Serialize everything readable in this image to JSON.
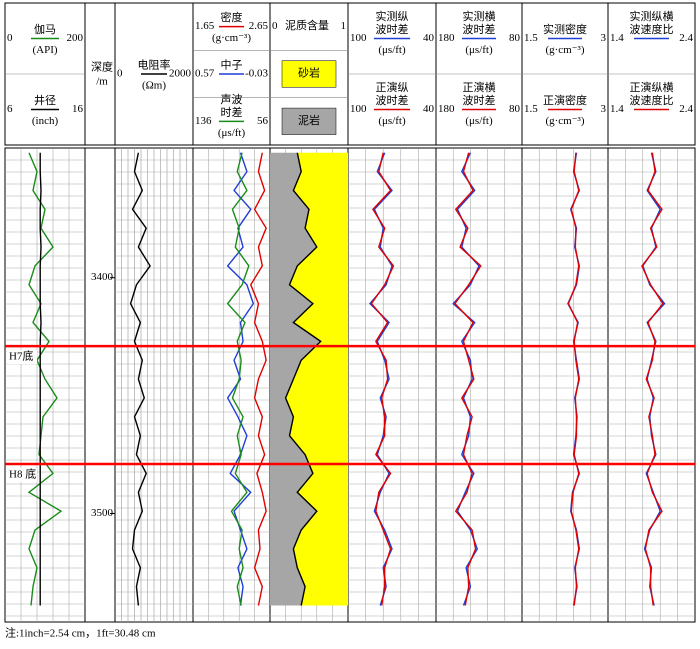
{
  "chart_data": {
    "type": "well-log",
    "note": "注:1inch=2.54 cm，1ft=30.48 cm",
    "depth_title": [
      "深度",
      "/m"
    ],
    "ylim": [
      3345,
      3546
    ],
    "yticks": [
      3400,
      3500
    ],
    "depths": [
      3347,
      3355,
      3363,
      3371,
      3379,
      3387,
      3395,
      3403,
      3411,
      3419,
      3427,
      3435,
      3443,
      3451,
      3459,
      3467,
      3475,
      3483,
      3491,
      3499,
      3507,
      3515,
      3523,
      3531,
      3539
    ],
    "markers": [
      {
        "label": "H7底",
        "depth": 3429
      },
      {
        "label": "H8 底",
        "depth": 3479
      }
    ],
    "lithology": [
      {
        "label": "砂岩",
        "color": "#ffff00"
      },
      {
        "label": "泥岩",
        "color": "#a6a6a6"
      }
    ],
    "tracks": [
      {
        "curves": [
          {
            "name": [
              "伽马"
            ],
            "unit": "(API)",
            "scale": [
              0,
              200
            ],
            "color": "#1a8c1a",
            "values": [
              60,
              80,
              70,
              100,
              90,
              120,
              75,
              60,
              90,
              70,
              110,
              80,
              100,
              130,
              95,
              90,
              85,
              120,
              60,
              140,
              75,
              60,
              80,
              70,
              65
            ]
          },
          {
            "name": [
              "井径"
            ],
            "unit": "(inch)",
            "scale": [
              6,
              16
            ],
            "color": "#000000",
            "values": [
              10.4,
              10.4,
              10.5,
              10.4,
              10.4,
              10.5,
              10.4,
              10.4,
              10.4,
              10.5,
              10.4,
              10.4,
              10.4,
              10.4,
              10.4,
              10.4,
              10.4,
              10.4,
              10.4,
              10.4,
              10.4,
              10.4,
              10.4,
              10.4,
              10.4
            ]
          }
        ]
      },
      {
        "curves": [
          {
            "name": [
              "电阻率"
            ],
            "unit": "(Ωm)",
            "scale": [
              0,
              2000
            ],
            "color": "#000000",
            "values": [
              600,
              500,
              700,
              450,
              800,
              600,
              900,
              550,
              400,
              650,
              500,
              700,
              600,
              750,
              500,
              650,
              550,
              800,
              600,
              700,
              500,
              450,
              650,
              550,
              600
            ]
          }
        ]
      },
      {
        "curves": [
          {
            "name": [
              "密度"
            ],
            "unit": "(g·cm⁻³)",
            "scale": [
              1.65,
              2.65
            ],
            "color": "#e00000",
            "values": [
              2.55,
              2.5,
              2.58,
              2.45,
              2.6,
              2.5,
              2.55,
              2.4,
              2.5,
              2.45,
              2.55,
              2.6,
              2.5,
              2.45,
              2.55,
              2.5,
              2.58,
              2.48,
              2.55,
              2.6,
              2.5,
              2.52,
              2.45,
              2.55,
              2.5
            ]
          },
          {
            "name": [
              "中子"
            ],
            "unit": "",
            "scale": [
              0.57,
              -0.03
            ],
            "color": "#1f3fd6",
            "values": [
              0.2,
              0.15,
              0.25,
              0.12,
              0.22,
              0.18,
              0.3,
              0.15,
              0.1,
              0.2,
              0.18,
              0.25,
              0.2,
              0.3,
              0.22,
              0.15,
              0.2,
              0.28,
              0.12,
              0.25,
              0.2,
              0.15,
              0.22,
              0.18,
              0.2
            ]
          },
          {
            "name": [
              "声波",
              "时差"
            ],
            "unit": "(μs/ft)",
            "scale": [
              136,
              56
            ],
            "color": "#1a8c1a",
            "values": [
              85,
              90,
              80,
              95,
              88,
              92,
              78,
              85,
              100,
              82,
              90,
              86,
              88,
              95,
              84,
              90,
              86,
              92,
              80,
              96,
              85,
              88,
              84,
              90,
              86
            ]
          }
        ]
      },
      {
        "shale": true,
        "curves": [
          {
            "name": [
              "泥质含量"
            ],
            "unit": "",
            "scale": [
              0,
              1
            ],
            "color": "#000000",
            "values": [
              0.35,
              0.4,
              0.3,
              0.5,
              0.45,
              0.6,
              0.35,
              0.25,
              0.55,
              0.3,
              0.65,
              0.4,
              0.3,
              0.2,
              0.3,
              0.25,
              0.45,
              0.55,
              0.35,
              0.6,
              0.4,
              0.3,
              0.35,
              0.45,
              0.4
            ]
          }
        ]
      },
      {
        "curves": [
          {
            "name": [
              "实测纵",
              "波时差"
            ],
            "unit": "(μs/ft)",
            "scale": [
              100,
              40
            ],
            "color": "#1f3fd6",
            "values": [
              75,
              80,
              70,
              82,
              76,
              78,
              70,
              74,
              85,
              72,
              80,
              75,
              72,
              78,
              74,
              76,
              80,
              72,
              78,
              82,
              75,
              70,
              76,
              74,
              78
            ]
          },
          {
            "name": [
              "正演纵",
              "波时差"
            ],
            "unit": "(μs/ft)",
            "scale": [
              100,
              40
            ],
            "color": "#e00000",
            "values": [
              76,
              79,
              71,
              83,
              75,
              79,
              69,
              75,
              84,
              73,
              81,
              74,
              73,
              77,
              75,
              75,
              81,
              71,
              79,
              81,
              76,
              71,
              75,
              75,
              77
            ]
          }
        ]
      },
      {
        "curves": [
          {
            "name": [
              "实测横",
              "波时差"
            ],
            "unit": "(μs/ft)",
            "scale": [
              180,
              80
            ],
            "color": "#1f3fd6",
            "values": [
              140,
              150,
              135,
              155,
              145,
              150,
              130,
              140,
              160,
              135,
              150,
              140,
              138,
              148,
              140,
              142,
              150,
              136,
              146,
              155,
              140,
              132,
              145,
              140,
              148
            ]
          },
          {
            "name": [
              "正演横",
              "波时差"
            ],
            "unit": "(μs/ft)",
            "scale": [
              180,
              80
            ],
            "color": "#e00000",
            "values": [
              142,
              148,
              137,
              157,
              143,
              152,
              128,
              142,
              158,
              137,
              148,
              142,
              136,
              150,
              138,
              144,
              148,
              138,
              144,
              157,
              138,
              134,
              143,
              142,
              146
            ]
          }
        ]
      },
      {
        "curves": [
          {
            "name": [
              "实测密度"
            ],
            "unit": "(g·cm⁻³)",
            "scale": [
              1.5,
              3
            ],
            "color": "#1f3fd6",
            "values": [
              2.45,
              2.4,
              2.5,
              2.35,
              2.45,
              2.42,
              2.5,
              2.45,
              2.3,
              2.48,
              2.4,
              2.45,
              2.5,
              2.42,
              2.46,
              2.44,
              2.4,
              2.5,
              2.38,
              2.35,
              2.45,
              2.5,
              2.42,
              2.46,
              2.4
            ]
          },
          {
            "name": [
              "正演密度"
            ],
            "unit": "(g·cm⁻³)",
            "scale": [
              1.5,
              3
            ],
            "color": "#e00000",
            "values": [
              2.44,
              2.41,
              2.49,
              2.36,
              2.44,
              2.43,
              2.49,
              2.44,
              2.31,
              2.47,
              2.41,
              2.44,
              2.49,
              2.43,
              2.45,
              2.45,
              2.41,
              2.49,
              2.39,
              2.36,
              2.44,
              2.49,
              2.43,
              2.45,
              2.41
            ]
          }
        ]
      },
      {
        "curves": [
          {
            "name": [
              "实测纵横",
              "波速度比"
            ],
            "unit": "",
            "scale": [
              1.4,
              2.4
            ],
            "color": "#1f3fd6",
            "values": [
              1.9,
              1.95,
              1.85,
              2.0,
              1.9,
              1.95,
              1.8,
              1.88,
              2.05,
              1.85,
              1.95,
              1.9,
              1.85,
              1.92,
              1.88,
              1.9,
              1.95,
              1.84,
              1.92,
              2.0,
              1.88,
              1.82,
              1.9,
              1.88,
              1.93
            ]
          },
          {
            "name": [
              "正演纵横",
              "波速度比"
            ],
            "unit": "",
            "scale": [
              1.4,
              2.4
            ],
            "color": "#e00000",
            "values": [
              1.91,
              1.94,
              1.86,
              2.02,
              1.89,
              1.96,
              1.79,
              1.89,
              2.03,
              1.86,
              1.94,
              1.91,
              1.84,
              1.93,
              1.87,
              1.91,
              1.94,
              1.85,
              1.91,
              2.02,
              1.87,
              1.83,
              1.89,
              1.89,
              1.92
            ]
          }
        ]
      }
    ]
  }
}
